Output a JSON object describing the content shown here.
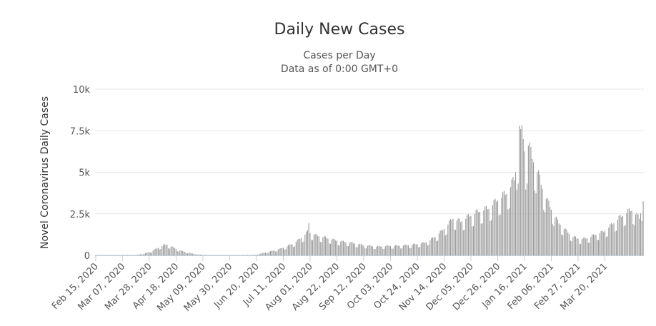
{
  "chart_data": {
    "type": "bar",
    "title": "Daily New Cases",
    "subtitle_lines": [
      "Cases per Day",
      "Data as of 0:00 GMT+0"
    ],
    "xlabel": "",
    "ylabel": "Novel Coronavirus Daily Cases",
    "ylim": [
      0,
      10000
    ],
    "yticks": [
      {
        "value": 0,
        "label": "0"
      },
      {
        "value": 2500,
        "label": "2.5k"
      },
      {
        "value": 5000,
        "label": "5k"
      },
      {
        "value": 7500,
        "label": "7.5k"
      },
      {
        "value": 10000,
        "label": "10k"
      }
    ],
    "x_start_date": "2020-02-15",
    "num_days": 430,
    "xticks": [
      {
        "day": 0,
        "label": "Feb 15, 2020"
      },
      {
        "day": 21,
        "label": "Mar 07, 2020"
      },
      {
        "day": 42,
        "label": "Mar 28, 2020"
      },
      {
        "day": 63,
        "label": "Apr 18, 2020"
      },
      {
        "day": 84,
        "label": "May 09, 2020"
      },
      {
        "day": 105,
        "label": "May 30, 2020"
      },
      {
        "day": 126,
        "label": "Jun 20, 2020"
      },
      {
        "day": 147,
        "label": "Jul 11, 2020"
      },
      {
        "day": 168,
        "label": "Aug 01, 2020"
      },
      {
        "day": 189,
        "label": "Aug 22, 2020"
      },
      {
        "day": 210,
        "label": "Sep 12, 2020"
      },
      {
        "day": 231,
        "label": "Oct 03, 2020"
      },
      {
        "day": 252,
        "label": "Oct 24, 2020"
      },
      {
        "day": 273,
        "label": "Nov 14, 2020"
      },
      {
        "day": 294,
        "label": "Dec 05, 2020"
      },
      {
        "day": 315,
        "label": "Dec 26, 2020"
      },
      {
        "day": 336,
        "label": "Jan 16, 2021"
      },
      {
        "day": 357,
        "label": "Feb 06, 2021"
      },
      {
        "day": 378,
        "label": "Feb 27, 2021"
      },
      {
        "day": 399,
        "label": "Mar 20, 2021"
      }
    ],
    "series_name": "Daily Cases",
    "trend_keypoints": [
      [
        0,
        0
      ],
      [
        30,
        0
      ],
      [
        38,
        100
      ],
      [
        44,
        250
      ],
      [
        50,
        500
      ],
      [
        55,
        650
      ],
      [
        60,
        500
      ],
      [
        64,
        350
      ],
      [
        68,
        250
      ],
      [
        73,
        150
      ],
      [
        80,
        50
      ],
      [
        90,
        10
      ],
      [
        110,
        5
      ],
      [
        125,
        30
      ],
      [
        135,
        200
      ],
      [
        145,
        400
      ],
      [
        155,
        700
      ],
      [
        162,
        1100
      ],
      [
        166,
        1400
      ],
      [
        172,
        1200
      ],
      [
        180,
        1050
      ],
      [
        190,
        850
      ],
      [
        200,
        750
      ],
      [
        210,
        600
      ],
      [
        220,
        520
      ],
      [
        230,
        560
      ],
      [
        240,
        580
      ],
      [
        250,
        650
      ],
      [
        258,
        750
      ],
      [
        265,
        1050
      ],
      [
        272,
        1500
      ],
      [
        280,
        2200
      ],
      [
        286,
        2000
      ],
      [
        292,
        2300
      ],
      [
        300,
        2600
      ],
      [
        308,
        2800
      ],
      [
        315,
        3300
      ],
      [
        322,
        3700
      ],
      [
        328,
        4500
      ],
      [
        331,
        6000
      ],
      [
        333,
        7500
      ],
      [
        335,
        7000
      ],
      [
        337,
        5500
      ],
      [
        339,
        6500
      ],
      [
        342,
        5800
      ],
      [
        346,
        5000
      ],
      [
        350,
        4000
      ],
      [
        354,
        3200
      ],
      [
        358,
        2600
      ],
      [
        362,
        2000
      ],
      [
        368,
        1500
      ],
      [
        374,
        1100
      ],
      [
        380,
        950
      ],
      [
        386,
        1050
      ],
      [
        392,
        1250
      ],
      [
        398,
        1400
      ],
      [
        404,
        1800
      ],
      [
        410,
        2200
      ],
      [
        415,
        2500
      ],
      [
        420,
        2700
      ],
      [
        426,
        2200
      ],
      [
        429,
        3200
      ]
    ],
    "weekly_low_amplitude": 0.28,
    "notable_values": [
      {
        "day": 167,
        "value": 1950
      },
      {
        "day": 332,
        "value": 7800
      },
      {
        "day": 333,
        "value": 7600
      },
      {
        "day": 339,
        "value": 6600
      },
      {
        "day": 429,
        "value": 3250
      }
    ],
    "colors": {
      "bars": "#999999",
      "grid": "#e6e6e6",
      "axis": "#c0d0e0"
    }
  }
}
